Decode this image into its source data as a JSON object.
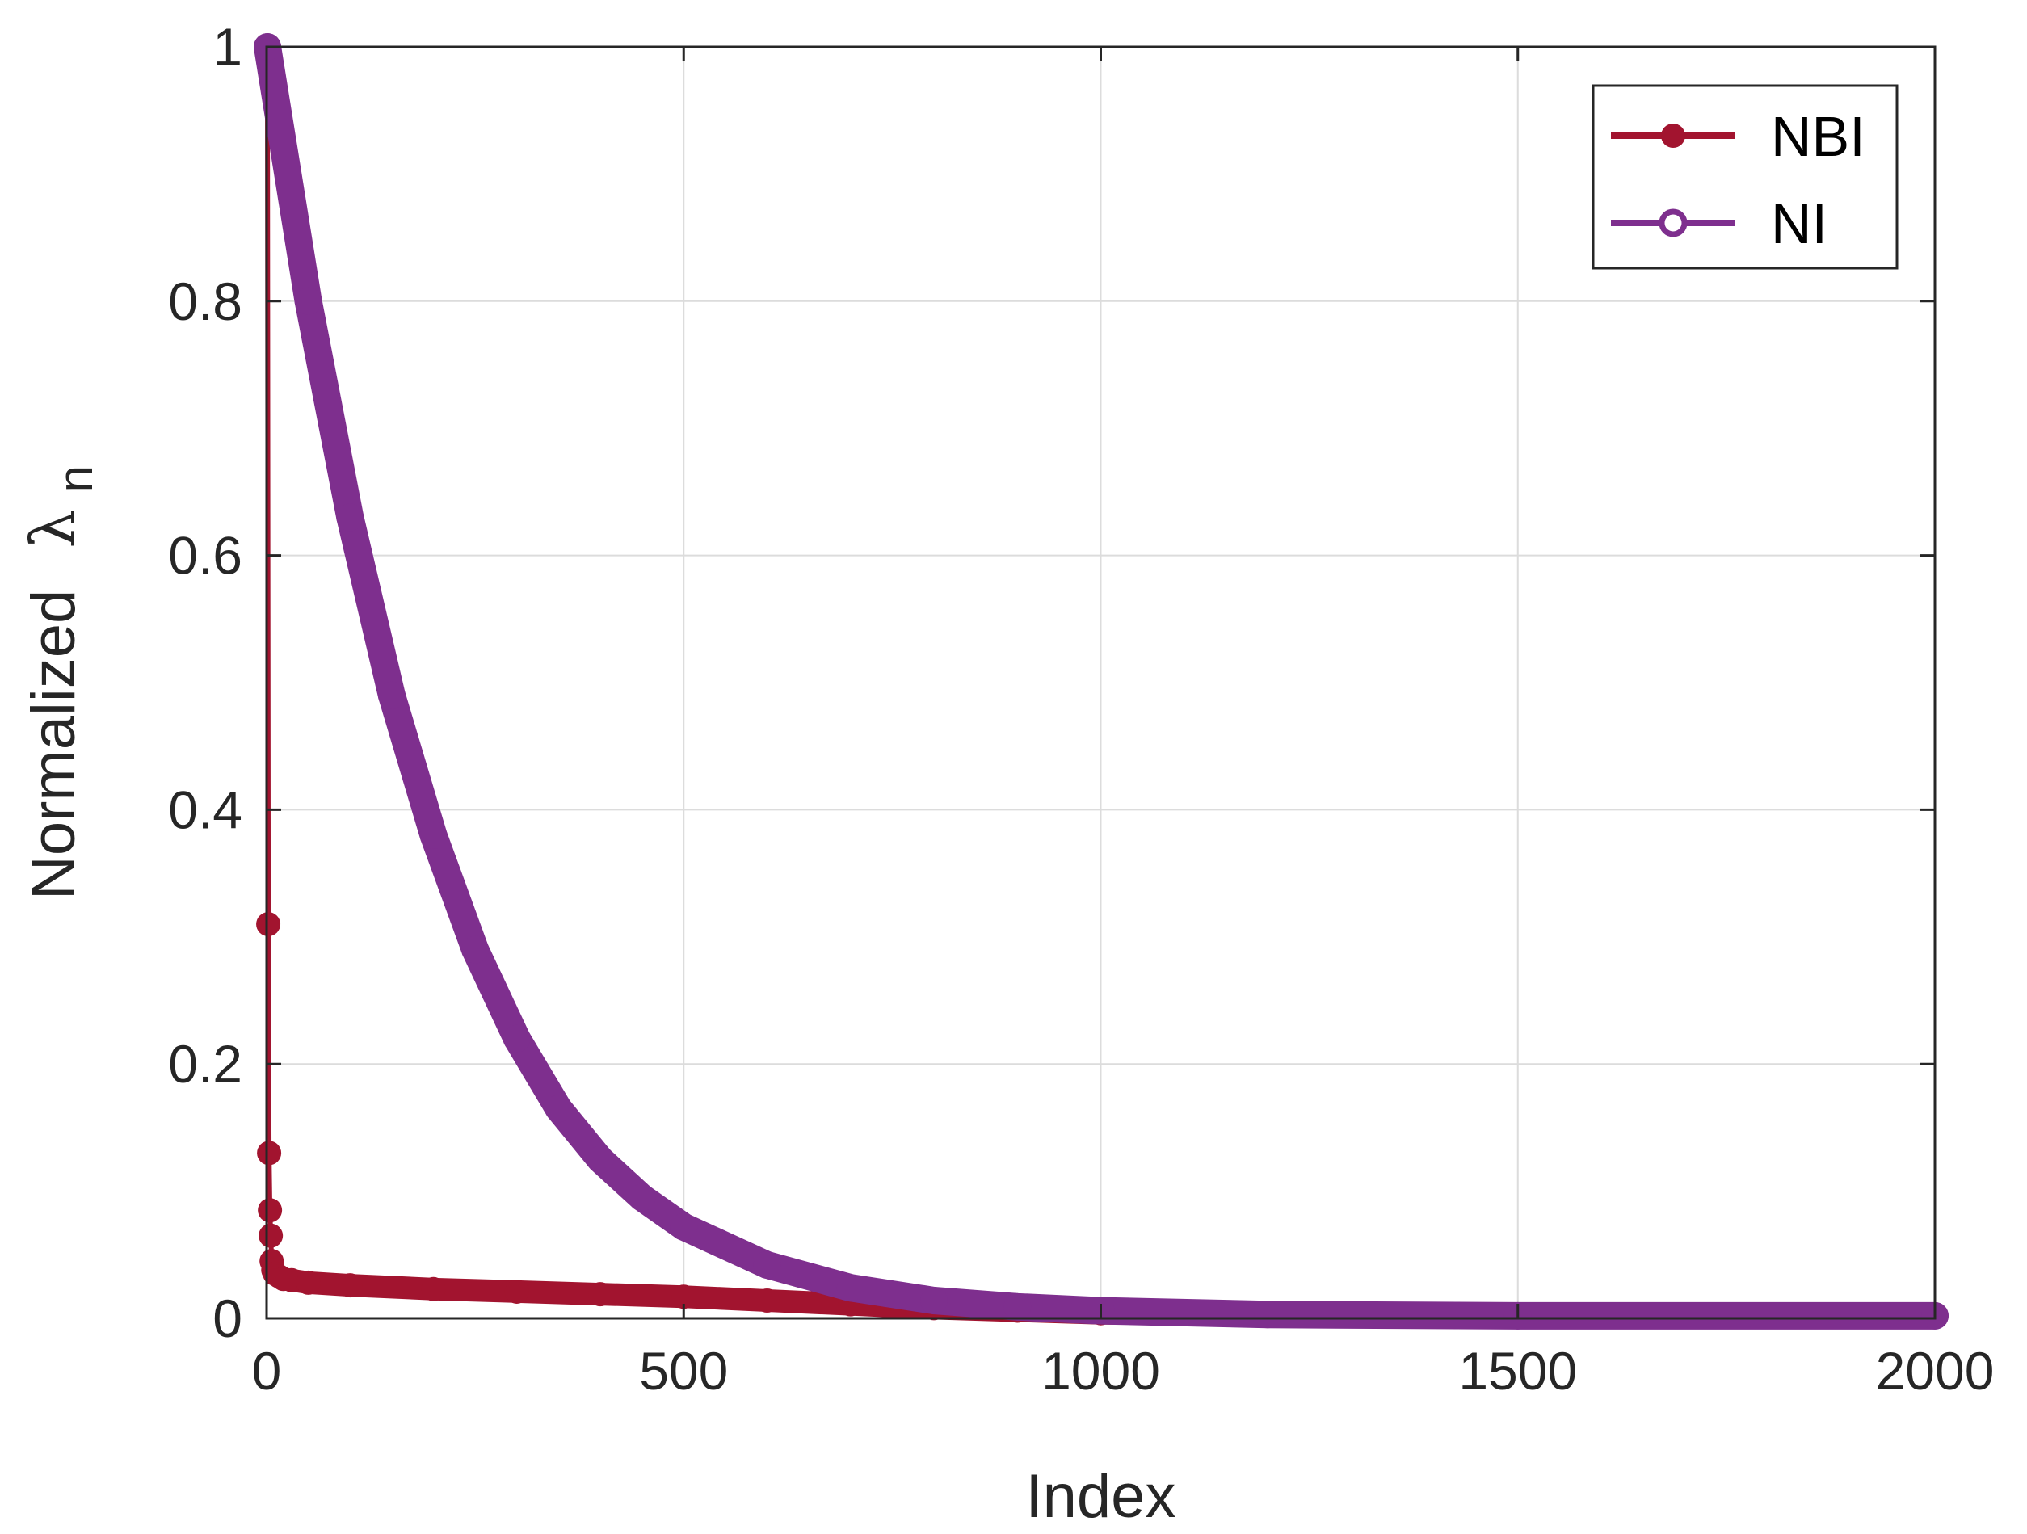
{
  "chart_data": {
    "type": "line",
    "xlabel": "Index",
    "ylabel": "Normalized",
    "ylabel_symbol": "λ",
    "ylabel_subscript": "n",
    "xlim": [
      0,
      2000
    ],
    "ylim": [
      0,
      1
    ],
    "grid": true,
    "legend_position": "top-right",
    "x_ticks": [
      "0",
      "500",
      "1000",
      "1500",
      "2000"
    ],
    "y_ticks": [
      "0",
      "0.2",
      "0.4",
      "0.6",
      "0.8",
      "1"
    ],
    "series": [
      {
        "name": "NBI",
        "color": "#a2142f",
        "marker": "filled-circle",
        "x": [
          1,
          2,
          3,
          4,
          5,
          6,
          8,
          10,
          15,
          20,
          30,
          50,
          100,
          200,
          300,
          400,
          500,
          600,
          700,
          800,
          900,
          1000,
          1200,
          1500,
          2000
        ],
        "y": [
          1.0,
          0.31,
          0.13,
          0.085,
          0.065,
          0.045,
          0.038,
          0.035,
          0.033,
          0.031,
          0.03,
          0.028,
          0.026,
          0.023,
          0.021,
          0.019,
          0.017,
          0.014,
          0.011,
          0.008,
          0.006,
          0.004,
          0.003,
          0.002,
          0.001
        ]
      },
      {
        "name": "NI",
        "color": "#7e2f8e",
        "marker": "open-circle",
        "x": [
          1,
          50,
          100,
          150,
          200,
          250,
          300,
          350,
          400,
          450,
          500,
          600,
          700,
          800,
          900,
          1000,
          1200,
          1500,
          2000
        ],
        "y": [
          1.0,
          0.8,
          0.63,
          0.49,
          0.38,
          0.29,
          0.22,
          0.165,
          0.125,
          0.095,
          0.072,
          0.042,
          0.024,
          0.014,
          0.009,
          0.006,
          0.003,
          0.002,
          0.002
        ]
      }
    ]
  }
}
